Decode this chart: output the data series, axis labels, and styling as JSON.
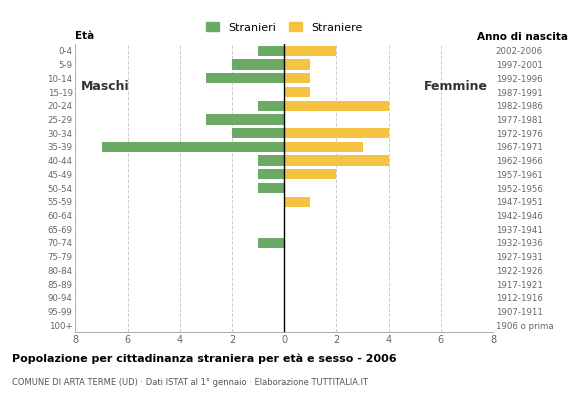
{
  "age_groups": [
    "100+",
    "95-99",
    "90-94",
    "85-89",
    "80-84",
    "75-79",
    "70-74",
    "65-69",
    "60-64",
    "55-59",
    "50-54",
    "45-49",
    "40-44",
    "35-39",
    "30-34",
    "25-29",
    "20-24",
    "15-19",
    "10-14",
    "5-9",
    "0-4"
  ],
  "birth_years": [
    "1906 o prima",
    "1907-1911",
    "1912-1916",
    "1917-1921",
    "1922-1926",
    "1927-1931",
    "1932-1936",
    "1937-1941",
    "1942-1946",
    "1947-1951",
    "1952-1956",
    "1957-1961",
    "1962-1966",
    "1967-1971",
    "1972-1976",
    "1977-1981",
    "1982-1986",
    "1987-1991",
    "1992-1996",
    "1997-2001",
    "2002-2006"
  ],
  "males": [
    0,
    0,
    0,
    0,
    0,
    0,
    1,
    0,
    0,
    0,
    1,
    1,
    1,
    7,
    2,
    3,
    1,
    0,
    3,
    2,
    1
  ],
  "females": [
    0,
    0,
    0,
    0,
    0,
    0,
    0,
    0,
    0,
    1,
    0,
    2,
    4,
    3,
    4,
    0,
    4,
    1,
    1,
    1,
    2
  ],
  "male_color": "#6aaa64",
  "female_color": "#f5c242",
  "title": "Popolazione per cittadinanza straniera per età e sesso - 2006",
  "subtitle": "COMUNE DI ARTA TERME (UD) · Dati ISTAT al 1° gennaio · Elaborazione TUTTITALIA.IT",
  "legend_male": "Stranieri",
  "legend_female": "Straniere",
  "label_maschi": "Maschi",
  "label_femmine": "Femmine",
  "label_eta": "Età",
  "label_anno": "Anno di nascita",
  "xlim": 8,
  "background_color": "#ffffff",
  "grid_color": "#cccccc",
  "bar_height": 0.75
}
